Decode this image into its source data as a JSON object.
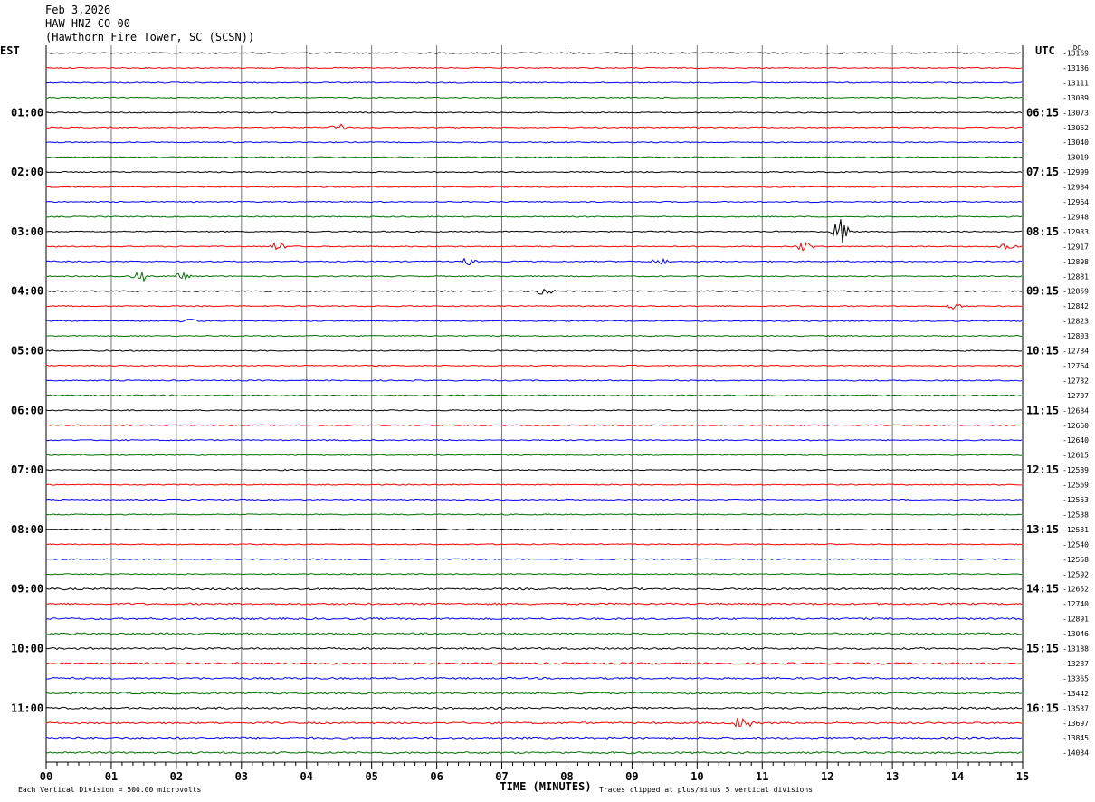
{
  "header": {
    "date": "Feb 3,2026",
    "station": "HAW HNZ CO 00",
    "location": "(Hawthorn Fire Tower, SC (SCSN))"
  },
  "chart_data": {
    "type": "line",
    "title": "Feb 3,2026",
    "left_axis_label": "EST",
    "right_axis_label": "UTC",
    "dc_label": "DC",
    "xlabel": "TIME (MINUTES)",
    "x_ticks": [
      "00",
      "01",
      "02",
      "03",
      "04",
      "05",
      "06",
      "07",
      "08",
      "09",
      "10",
      "11",
      "12",
      "13",
      "14",
      "15"
    ],
    "xlim": [
      0,
      15
    ],
    "trace_colors": [
      "#000000",
      "#ff0000",
      "#0000ff",
      "#007000"
    ],
    "left_hour_labels": [
      "01:00",
      "02:00",
      "03:00",
      "04:00",
      "05:00",
      "06:00",
      "07:00",
      "08:00",
      "09:00",
      "10:00",
      "11:00"
    ],
    "right_hour_labels": [
      "06:15",
      "07:15",
      "08:15",
      "09:15",
      "10:15",
      "11:15",
      "12:15",
      "13:15",
      "14:15",
      "15:15",
      "16:15"
    ],
    "dc_offsets": [
      "-13169",
      "-13136",
      "-13111",
      "-13089",
      "-13073",
      "-13062",
      "-13040",
      "-13019",
      "-12999",
      "-12984",
      "-12964",
      "-12948",
      "-12933",
      "-12917",
      "-12898",
      "-12881",
      "-12859",
      "-12842",
      "-12823",
      "-12803",
      "-12784",
      "-12764",
      "-12732",
      "-12707",
      "-12684",
      "-12660",
      "-12640",
      "-12615",
      "-12589",
      "-12569",
      "-12553",
      "-12538",
      "-12531",
      "-12540",
      "-12558",
      "-12592",
      "-12652",
      "-12740",
      "-12891",
      "-13046",
      "-13188",
      "-13287",
      "-13365",
      "-13442",
      "-13537",
      "-13697",
      "-13845",
      "-14034"
    ],
    "events": [
      {
        "trace": 5,
        "minute": 4.5,
        "amp": 5
      },
      {
        "trace": 12,
        "minute": 12.2,
        "amp": 16
      },
      {
        "trace": 13,
        "minute": 3.55,
        "amp": 6
      },
      {
        "trace": 13,
        "minute": 11.65,
        "amp": 5
      },
      {
        "trace": 13,
        "minute": 14.75,
        "amp": 5
      },
      {
        "trace": 14,
        "minute": 6.5,
        "amp": 5
      },
      {
        "trace": 14,
        "minute": 9.45,
        "amp": 6
      },
      {
        "trace": 15,
        "minute": 1.45,
        "amp": 6
      },
      {
        "trace": 15,
        "minute": 2.1,
        "amp": 4
      },
      {
        "trace": 16,
        "minute": 7.65,
        "amp": 8
      },
      {
        "trace": 17,
        "minute": 13.95,
        "amp": 4
      },
      {
        "trace": 18,
        "minute": 2.2,
        "amp": 3
      },
      {
        "trace": 45,
        "minute": 10.7,
        "amp": 9
      }
    ],
    "footer_left": "Each Vertical Division =  500.00 microvolts",
    "footer_right": "Traces clipped at plus/minus 5 vertical divisions"
  }
}
